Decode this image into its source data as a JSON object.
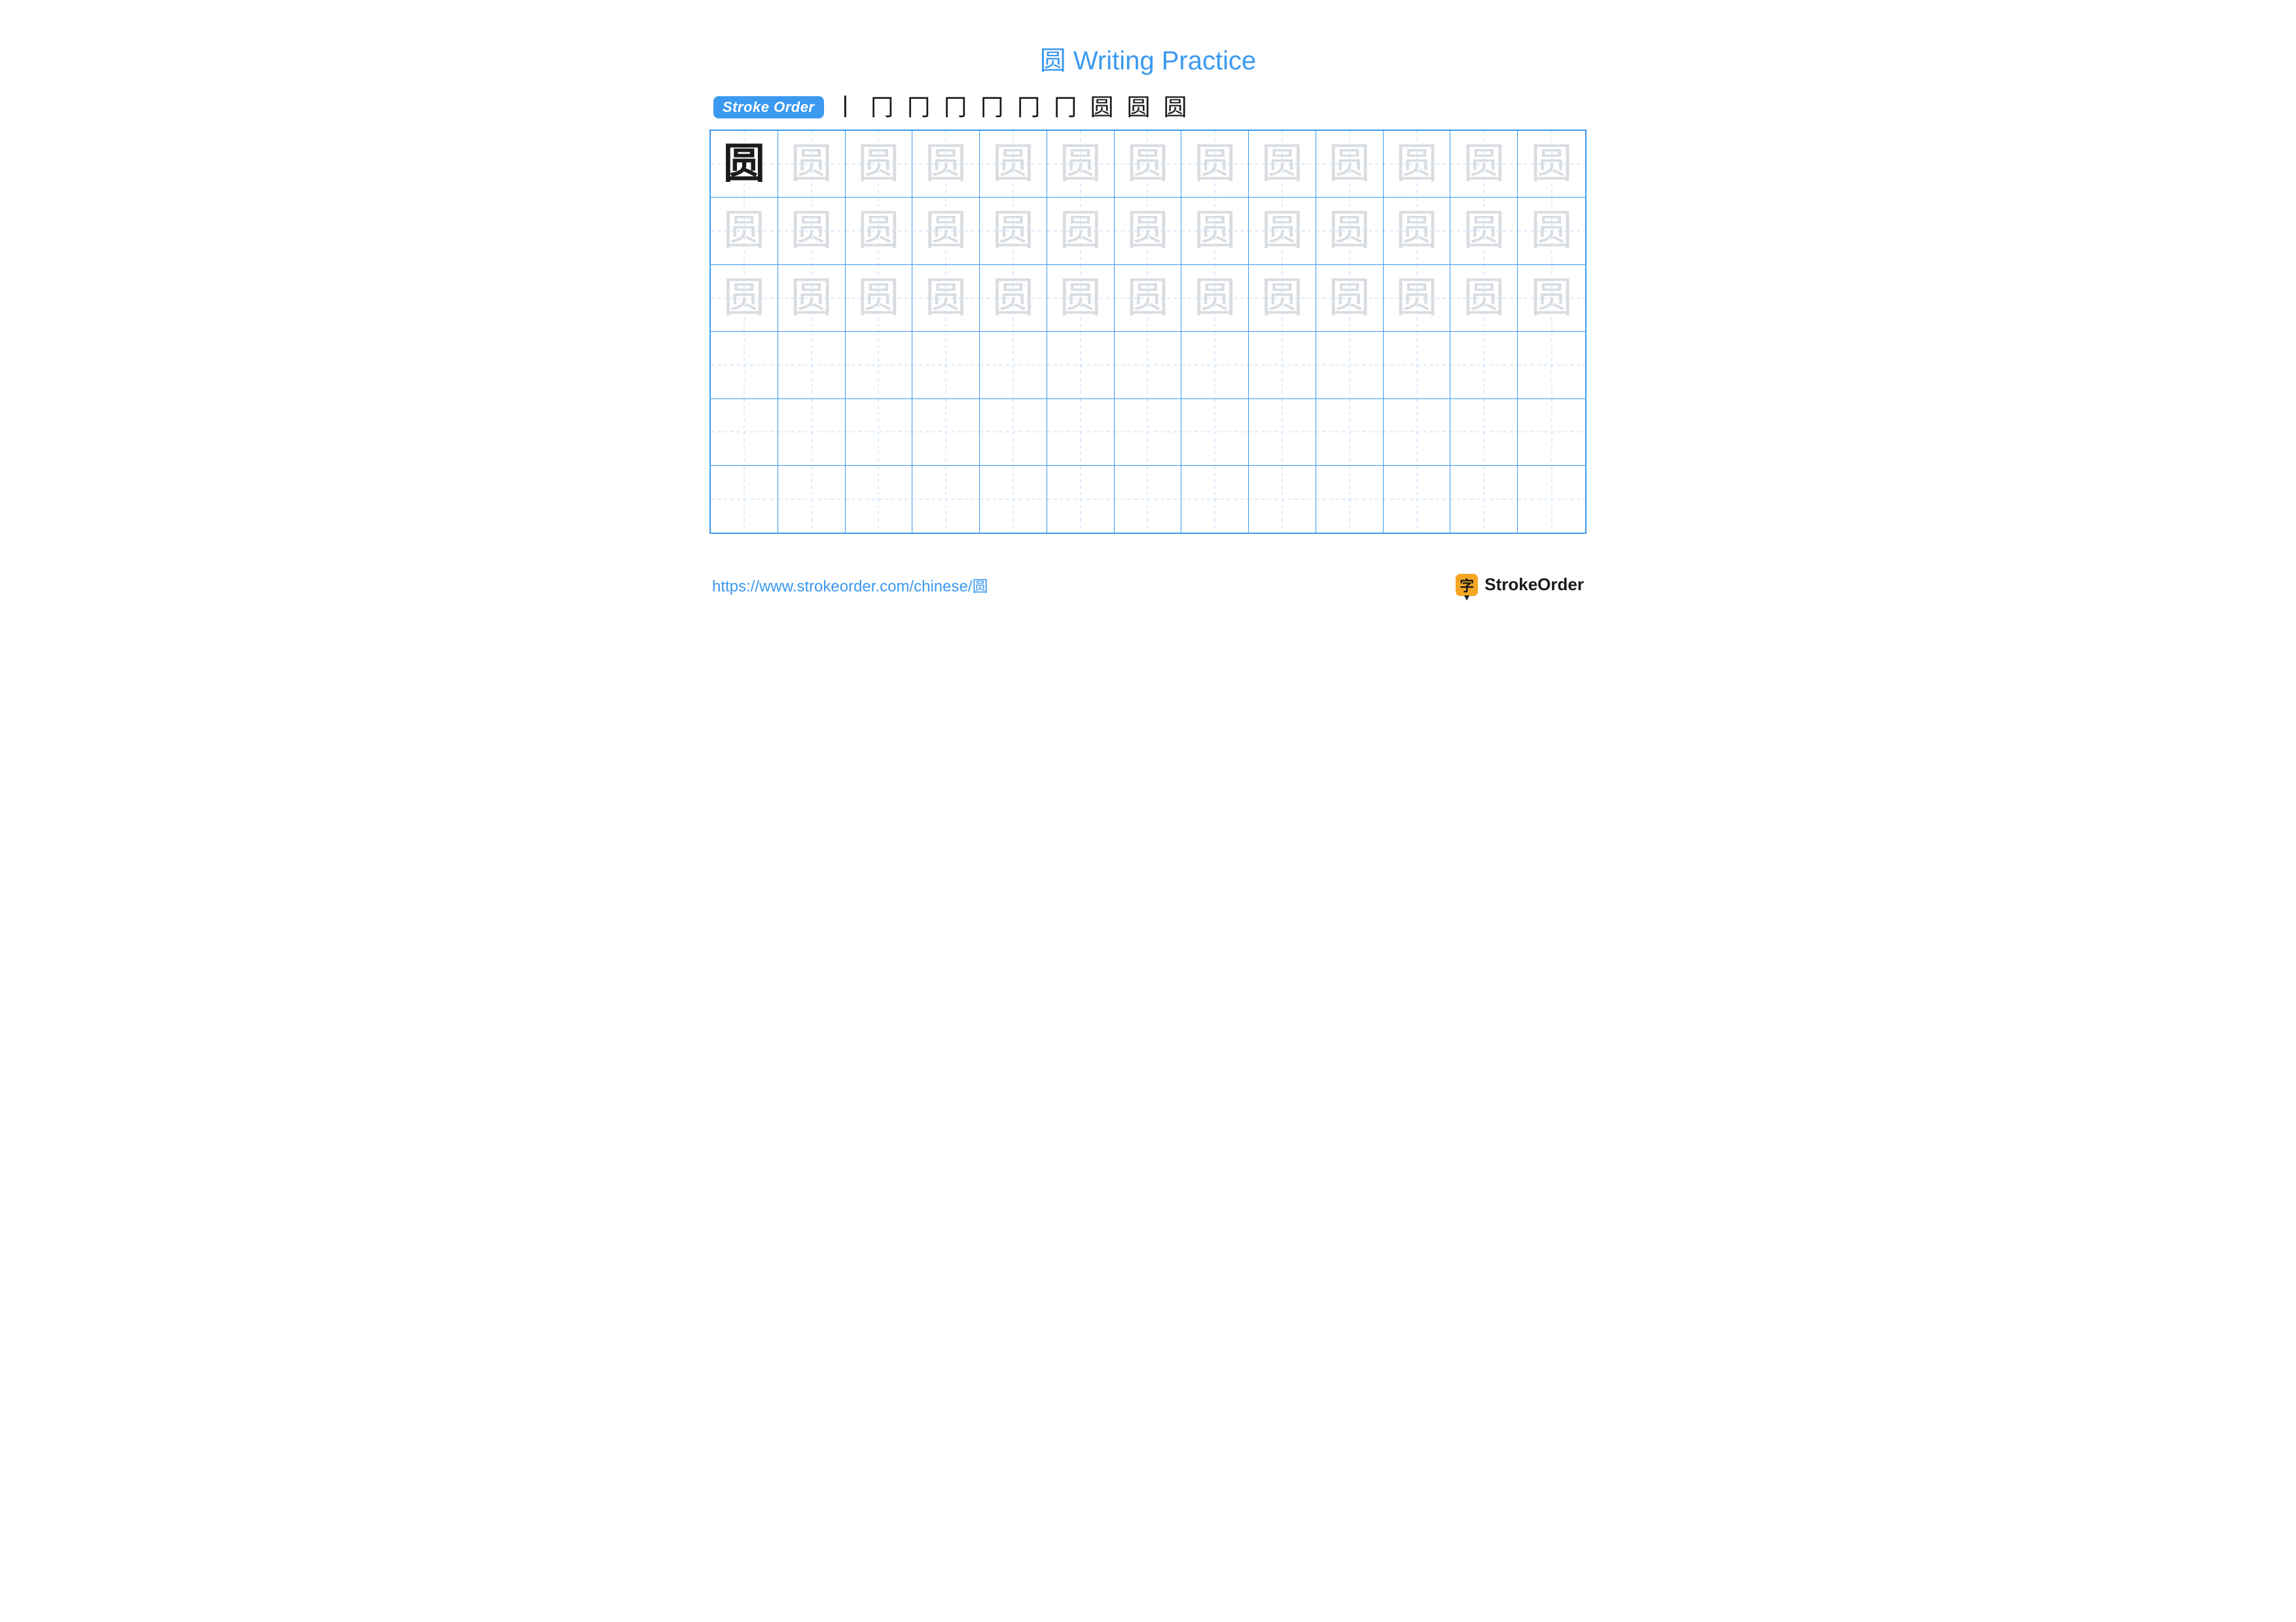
{
  "title": "圆 Writing Practice",
  "stroke_label": "Stroke Order",
  "character": "圆",
  "stroke_steps": [
    "丨",
    "冂",
    "冂",
    "冂",
    "冂",
    "冂",
    "冂",
    "圆",
    "圆",
    "圆"
  ],
  "grid": {
    "columns": 13,
    "rows": 6,
    "ghost_rows": 3,
    "model_cell": {
      "row": 0,
      "col": 0
    }
  },
  "colors": {
    "accent": "#3b99f0",
    "guide_dash": "#b8d8fb",
    "model_glyph": "#1a1a1a",
    "ghost_glyph": "#d9dde1",
    "badge_bg": "#3b99f0",
    "badge_text": "#ffffff",
    "brand_icon_bg": "#f5a623",
    "brand_text": "#1a1a1a",
    "background": "#ffffff"
  },
  "typography": {
    "title_fontsize": 40,
    "glyph_fontsize": 64,
    "stroke_step_fontsize": 36,
    "url_fontsize": 24,
    "brand_fontsize": 26,
    "glyph_font": "SimSun"
  },
  "footer": {
    "url": "https://www.strokeorder.com/chinese/圆",
    "brand_glyph": "字",
    "brand_name": "StrokeOrder"
  }
}
